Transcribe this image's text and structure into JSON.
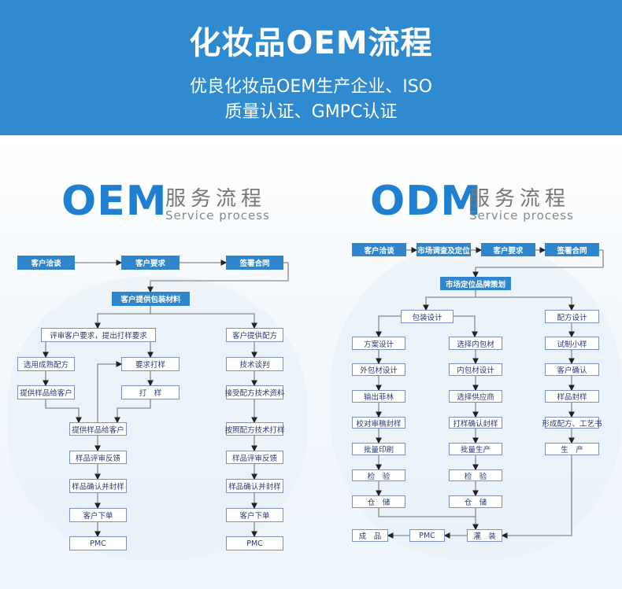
{
  "header": {
    "title": "化妆品OEM流程",
    "subtitle_line1": "优良化妆品OEM生产企业、ISO",
    "subtitle_line2": "质量认证、GMPC认证"
  },
  "colors": {
    "header_bg": "#2f8ad0",
    "accent": "#1f7fd0",
    "box_solid": "#2f86cc",
    "box_border": "#7c8fc0"
  },
  "oem": {
    "heading": "OEM",
    "heading_cn": "服务流程",
    "heading_en": "Service process",
    "boxes": {
      "t1": "客户洽谈",
      "t2": "客户要求",
      "t3": "签署合同",
      "pack": "客户提供包装材料",
      "review": "评审客户要求，提出打样要求",
      "formula": "客户提供配方",
      "mature": "选用成熟配方",
      "req": "要求打样",
      "provide1": "提供样品给客户",
      "sample": "打　样",
      "tech": "技术谈判",
      "accept": "接受配方技术资料",
      "c1": "提供样品给客户",
      "c2": "样品评审反馈",
      "c3": "样品确认并封样",
      "c4": "客户下单",
      "c5": "PMC",
      "r1": "按照配方技术打样",
      "r2": "样品评审反馈",
      "r3": "样品确认并封样",
      "r4": "客户下单",
      "r5": "PMC"
    }
  },
  "odm": {
    "heading": "ODM",
    "heading_cn": "服务流程",
    "heading_en": "Service process",
    "boxes": {
      "t1": "客户洽谈",
      "t2": "市场调查及定位",
      "t3": "客户要求",
      "t4": "签署合同",
      "brand": "市场定位品牌策划",
      "packd": "包装设计",
      "formd": "配方设计",
      "a1": "方案设计",
      "a2": "外包材设计",
      "a3": "输出菲林",
      "a4": "校对审稿封样",
      "a5": "批量印刷",
      "a6": "检　验",
      "a7": "仓　储",
      "b1": "选择内包材",
      "b2": "内包材设计",
      "b3": "选择供应商",
      "b4": "打样确认封样",
      "b5": "批量生产",
      "b6": "检　验",
      "b7": "仓　储",
      "c1": "试制小样",
      "c2": "客户确认",
      "c3": "样品封样",
      "c4": "形成配方、工艺书",
      "c5": "生　产",
      "fill": "灌　装",
      "pmc": "PMC",
      "done": "成　品"
    }
  }
}
